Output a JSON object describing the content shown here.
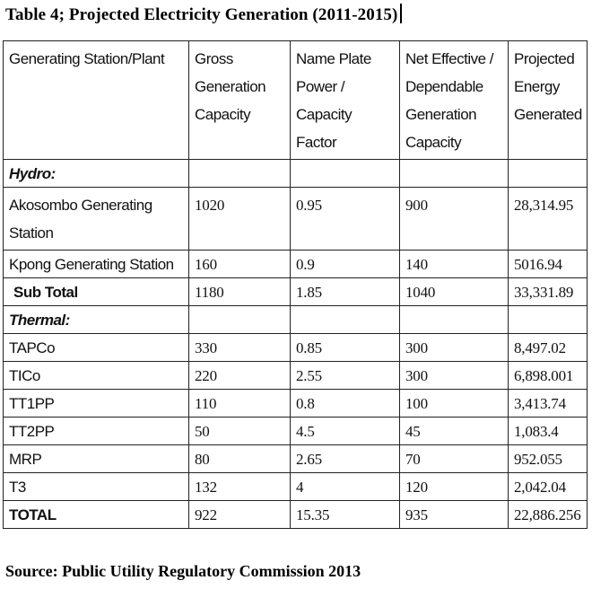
{
  "title": "Table 4; Projected Electricity Generation (2011-2015)",
  "columns": [
    "Generating Station/Plant",
    "Gross Generation Capacity",
    "Name Plate Power / Capacity Factor",
    "Net Effective / Dependable Generation Capacity",
    "Projected Energy Generated"
  ],
  "sections": {
    "hydro": "Hydro:",
    "thermal": "Thermal:"
  },
  "rows": {
    "akosombo": [
      "Akosombo Generating Station",
      "1020",
      "0.95",
      "900",
      "28,314.95"
    ],
    "kpong": [
      "Kpong Generating Station",
      "160",
      "0.9",
      "140",
      "5016.94"
    ],
    "subtotal": [
      "Sub Total",
      "1180",
      "1.85",
      "1040",
      "33,331.89"
    ],
    "tapco": [
      "TAPCo",
      "330",
      "0.85",
      "300",
      "8,497.02"
    ],
    "tico": [
      "TICo",
      "220",
      "2.55",
      "300",
      "6,898.001"
    ],
    "tt1pp": [
      "TT1PP",
      "110",
      "0.8",
      "100",
      "3,413.74"
    ],
    "tt2pp": [
      "TT2PP",
      "50",
      "4.5",
      "45",
      "1,083.4"
    ],
    "mrp": [
      "MRP",
      "80",
      "2.65",
      "70",
      "952.055"
    ],
    "t3": [
      "T3",
      "132",
      "4",
      "120",
      "2,042.04"
    ],
    "total": [
      "TOTAL",
      "922",
      "15.35",
      "935",
      "22,886.256"
    ]
  },
  "source": "Source: Public Utility Regulatory Commission 2013"
}
